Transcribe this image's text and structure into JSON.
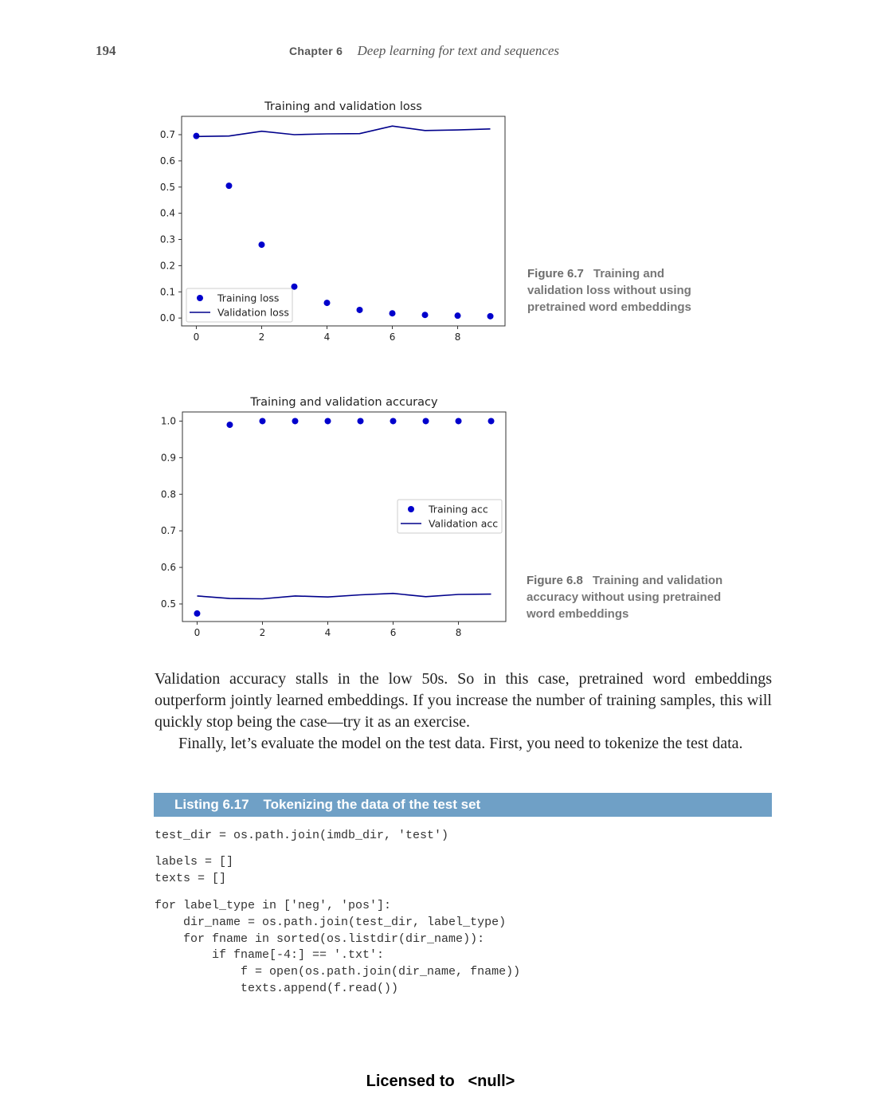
{
  "header": {
    "page_number": "194",
    "chapter_label": "Chapter 6",
    "chapter_title": "Deep learning for text and sequences"
  },
  "chart_data": [
    {
      "type": "scatter+line",
      "title": "Training and validation loss",
      "x": [
        0,
        1,
        2,
        3,
        4,
        5,
        6,
        7,
        8,
        9
      ],
      "xticks": [
        "0",
        "2",
        "4",
        "6",
        "8"
      ],
      "yticks": [
        "0.0",
        "0.1",
        "0.2",
        "0.3",
        "0.4",
        "0.5",
        "0.6",
        "0.7"
      ],
      "xlim": [
        -0.45,
        9.45
      ],
      "ylim": [
        -0.03,
        0.77
      ],
      "legend_position": "lower-left",
      "series": [
        {
          "name": "Training loss",
          "style": "points",
          "color": "#0000cc",
          "values": [
            0.695,
            0.505,
            0.28,
            0.12,
            0.058,
            0.031,
            0.018,
            0.012,
            0.009,
            0.007
          ]
        },
        {
          "name": "Validation loss",
          "style": "line",
          "color": "#00008b",
          "values": [
            0.693,
            0.695,
            0.713,
            0.7,
            0.703,
            0.704,
            0.733,
            0.716,
            0.718,
            0.722
          ]
        }
      ]
    },
    {
      "type": "scatter+line",
      "title": "Training and validation accuracy",
      "x": [
        0,
        1,
        2,
        3,
        4,
        5,
        6,
        7,
        8,
        9
      ],
      "xticks": [
        "0",
        "2",
        "4",
        "6",
        "8"
      ],
      "yticks": [
        "0.5",
        "0.6",
        "0.7",
        "0.8",
        "0.9",
        "1.0"
      ],
      "xlim": [
        -0.45,
        9.45
      ],
      "ylim": [
        0.452,
        1.025
      ],
      "legend_position": "center-right",
      "series": [
        {
          "name": "Training acc",
          "style": "points",
          "color": "#0000cc",
          "values": [
            0.474,
            0.99,
            1.0,
            1.0,
            1.0,
            1.0,
            1.0,
            1.0,
            1.0,
            1.0
          ]
        },
        {
          "name": "Validation acc",
          "style": "line",
          "color": "#00008b",
          "values": [
            0.522,
            0.515,
            0.514,
            0.522,
            0.519,
            0.525,
            0.529,
            0.52,
            0.526,
            0.527
          ]
        }
      ]
    }
  ],
  "captions": {
    "fig67_number": "Figure 6.7",
    "fig67_text": "Training and validation loss without using pretrained word embeddings",
    "fig68_number": "Figure 6.8",
    "fig68_text": "Training and validation accuracy without using pretrained word embeddings"
  },
  "body": {
    "para1": "Validation accuracy stalls in the low 50s. So in this case, pretrained word embeddings outperform jointly learned embeddings. If you increase the number of training samples, this will quickly stop being the case—try it as an exercise.",
    "para2": "Finally, let’s evaluate the model on the test data. First, you need to tokenize the test data."
  },
  "listing": {
    "number": "Listing 6.17",
    "title": "Tokenizing the data of the test set",
    "block1": "test_dir = os.path.join(imdb_dir, 'test')",
    "block2": "labels = []\ntexts = []",
    "block3": "for label_type in ['neg', 'pos']:\n    dir_name = os.path.join(test_dir, label_type)\n    for fname in sorted(os.listdir(dir_name)):\n        if fname[-4:] == '.txt':\n            f = open(os.path.join(dir_name, fname))\n            texts.append(f.read())"
  },
  "footer": {
    "text": "Licensed to   <null>"
  }
}
